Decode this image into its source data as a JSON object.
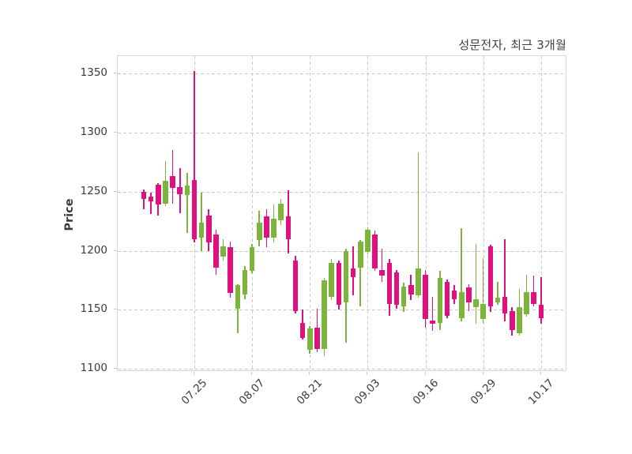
{
  "title": "성문전자, 최근 3개월",
  "ylabel": "Price",
  "chart_data": {
    "type": "candlestick",
    "title": "성문전자, 최근 3개월",
    "xlabel": "",
    "ylabel": "Price",
    "ylim": [
      1097.5,
      1364.8
    ],
    "grid": "dashed",
    "colors": {
      "up": "#7db53c",
      "down": "#e0107e",
      "grid": "#cbcbcb",
      "spine": "#d9d9d9",
      "text": "#3a3a3a",
      "title_text": "#3f3f3f",
      "background": "#ffffff"
    },
    "y_ticks": [
      1100,
      1150,
      1200,
      1250,
      1300,
      1350
    ],
    "x_ticks": [
      {
        "index": 7,
        "label": "07.25"
      },
      {
        "index": 15,
        "label": "08.07"
      },
      {
        "index": 23,
        "label": "08.21"
      },
      {
        "index": 31,
        "label": "09.03"
      },
      {
        "index": 39,
        "label": "09.16"
      },
      {
        "index": 47,
        "label": "09.29"
      },
      {
        "index": 55,
        "label": "10.17"
      }
    ],
    "ohlc_format": [
      "open",
      "high",
      "low",
      "close"
    ],
    "candles": [
      [
        1250,
        1252,
        1235,
        1244
      ],
      [
        1246,
        1249,
        1231,
        1242
      ],
      [
        1256,
        1257,
        1230,
        1239
      ],
      [
        1240,
        1276,
        1238,
        1259
      ],
      [
        1263,
        1285,
        1240,
        1253
      ],
      [
        1254,
        1270,
        1232,
        1248
      ],
      [
        1247,
        1266,
        1215,
        1255
      ],
      [
        1260,
        1352,
        1207,
        1210
      ],
      [
        1211,
        1249,
        1200,
        1224
      ],
      [
        1230,
        1235,
        1200,
        1207
      ],
      [
        1214,
        1218,
        1180,
        1186
      ],
      [
        1195,
        1210,
        1192,
        1204
      ],
      [
        1203,
        1208,
        1160,
        1164
      ],
      [
        1151,
        1172,
        1130,
        1171
      ],
      [
        1163,
        1187,
        1159,
        1184
      ],
      [
        1183,
        1206,
        1181,
        1203
      ],
      [
        1209,
        1234,
        1204,
        1224
      ],
      [
        1229,
        1235,
        1203,
        1211
      ],
      [
        1211,
        1239,
        1207,
        1227
      ],
      [
        1226,
        1244,
        1222,
        1240
      ],
      [
        1229,
        1251,
        1198,
        1210
      ],
      [
        1192,
        1196,
        1147,
        1149
      ],
      [
        1139,
        1150,
        1125,
        1126
      ],
      [
        1116,
        1136,
        1113,
        1134
      ],
      [
        1135,
        1151,
        1114,
        1117
      ],
      [
        1117,
        1177,
        1111,
        1175
      ],
      [
        1161,
        1193,
        1158,
        1190
      ],
      [
        1190,
        1192,
        1150,
        1154
      ],
      [
        1156,
        1202,
        1122,
        1200
      ],
      [
        1185,
        1204,
        1162,
        1178
      ],
      [
        1186,
        1209,
        1153,
        1208
      ],
      [
        1199,
        1220,
        1197,
        1218
      ],
      [
        1214,
        1217,
        1183,
        1185
      ],
      [
        1184,
        1202,
        1174,
        1179
      ],
      [
        1190,
        1193,
        1145,
        1155
      ],
      [
        1182,
        1184,
        1151,
        1154
      ],
      [
        1153,
        1173,
        1148,
        1170
      ],
      [
        1171,
        1180,
        1158,
        1163
      ],
      [
        1162,
        1283,
        1160,
        1185
      ],
      [
        1180,
        1184,
        1135,
        1142
      ],
      [
        1141,
        1161,
        1132,
        1138
      ],
      [
        1139,
        1183,
        1133,
        1177
      ],
      [
        1174,
        1176,
        1143,
        1145
      ],
      [
        1166,
        1171,
        1155,
        1159
      ],
      [
        1143,
        1219,
        1140,
        1165
      ],
      [
        1169,
        1172,
        1149,
        1156
      ],
      [
        1152,
        1206,
        1138,
        1159
      ],
      [
        1142,
        1194,
        1139,
        1155
      ],
      [
        1204,
        1205,
        1148,
        1153
      ],
      [
        1156,
        1174,
        1154,
        1160
      ],
      [
        1161,
        1210,
        1140,
        1147
      ],
      [
        1149,
        1152,
        1128,
        1133
      ],
      [
        1130,
        1168,
        1128,
        1152
      ],
      [
        1146,
        1180,
        1144,
        1165
      ],
      [
        1165,
        1179,
        1153,
        1155
      ],
      [
        1154,
        1178,
        1138,
        1143
      ]
    ]
  }
}
